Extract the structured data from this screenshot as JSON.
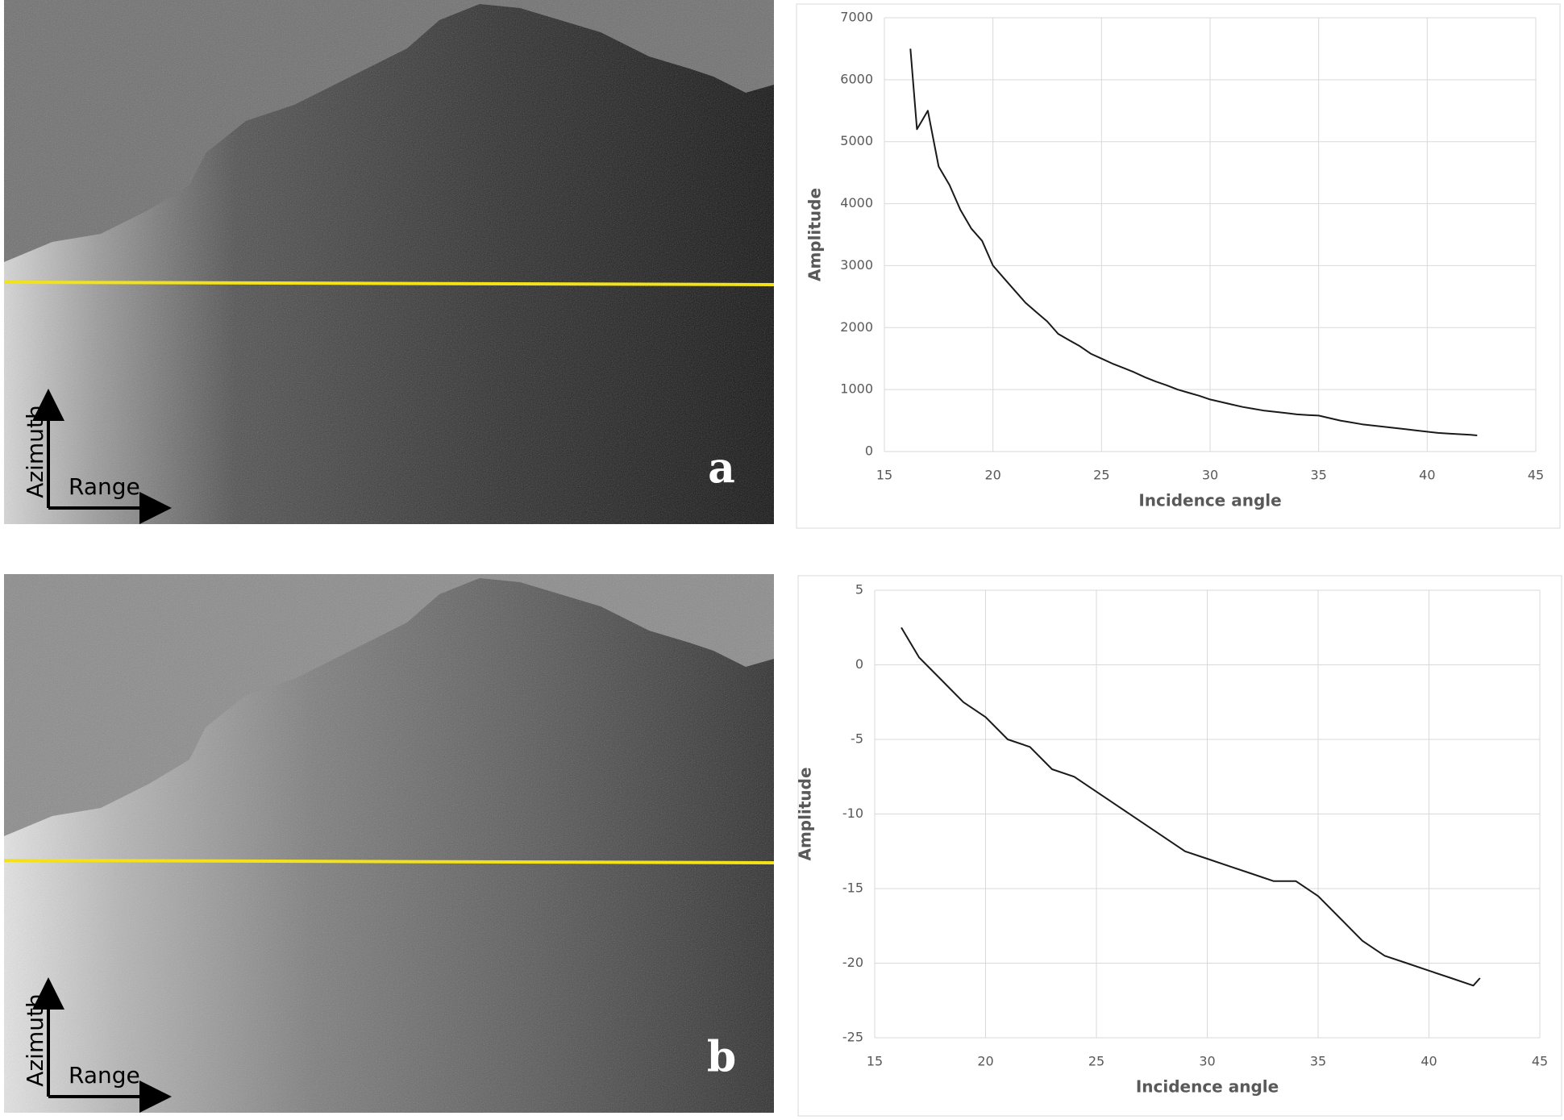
{
  "chart_data": [
    {
      "type": "line",
      "xlabel": "Incidence angle",
      "ylabel": "Amplitude",
      "color": "#1a1a1a",
      "grid": true,
      "x": [
        16.2,
        16.5,
        17,
        17.5,
        18,
        18.5,
        19,
        19.5,
        20,
        20.5,
        21,
        21.5,
        22,
        22.5,
        23,
        23.5,
        24,
        24.5,
        25,
        25.5,
        26,
        26.5,
        27,
        27.5,
        28,
        28.5,
        29,
        29.5,
        30,
        30.5,
        31,
        31.5,
        32,
        32.5,
        33,
        33.5,
        34,
        34.5,
        35,
        35.5,
        36,
        36.5,
        37,
        37.5,
        38,
        38.5,
        39,
        39.5,
        40,
        40.5,
        41,
        41.5,
        42,
        42.3
      ],
      "values": [
        6500,
        5200,
        5500,
        4600,
        4300,
        3900,
        3600,
        3400,
        3000,
        2800,
        2600,
        2400,
        2250,
        2100,
        1900,
        1800,
        1700,
        1580,
        1500,
        1420,
        1350,
        1280,
        1200,
        1130,
        1070,
        1000,
        950,
        900,
        840,
        800,
        760,
        720,
        690,
        660,
        640,
        620,
        600,
        590,
        580,
        540,
        500,
        470,
        440,
        420,
        400,
        380,
        360,
        340,
        320,
        300,
        290,
        280,
        270,
        260
      ],
      "xlim": [
        15,
        45
      ],
      "xticks": [
        15,
        20,
        25,
        30,
        35,
        40,
        45
      ],
      "ylim": [
        0,
        7000
      ],
      "yticks": [
        0,
        1000,
        2000,
        3000,
        4000,
        5000,
        6000,
        7000
      ]
    },
    {
      "type": "line",
      "xlabel": "Incidence angle",
      "ylabel": "Amplitude",
      "color": "#1a1a1a",
      "grid": true,
      "x": [
        16.2,
        17,
        18,
        19,
        20,
        21,
        22,
        23,
        24,
        25,
        26,
        27,
        28,
        29,
        30,
        31,
        32,
        33,
        34,
        35,
        36,
        37,
        38,
        39,
        40,
        41,
        42,
        42.3
      ],
      "values": [
        2.5,
        0.5,
        -1,
        -2.5,
        -3.5,
        -5,
        -5.5,
        -7,
        -7.5,
        -8.5,
        -9.5,
        -10.5,
        -11.5,
        -12.5,
        -13,
        -13.5,
        -14,
        -14.5,
        -14.5,
        -15.5,
        -17,
        -18.5,
        -19.5,
        -20,
        -20.5,
        -21,
        -21.5,
        -21
      ],
      "xlim": [
        15,
        45
      ],
      "xticks": [
        15,
        20,
        25,
        30,
        35,
        40,
        45
      ],
      "ylim": [
        -25,
        5
      ],
      "yticks": [
        -25,
        -20,
        -15,
        -10,
        -5,
        0,
        5
      ]
    }
  ],
  "images": [
    {
      "panel_label": "a",
      "azimuth_label": "Azimuth",
      "range_label": "Range"
    },
    {
      "panel_label": "b",
      "azimuth_label": "Azimuth",
      "range_label": "Range"
    }
  ]
}
